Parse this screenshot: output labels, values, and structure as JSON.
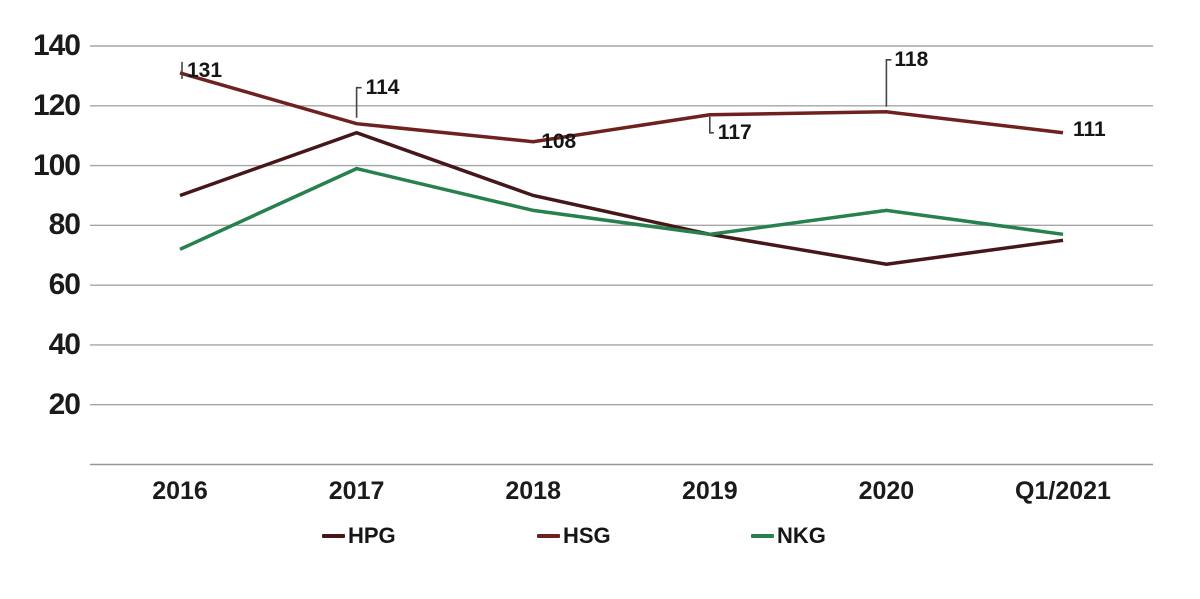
{
  "chart_data": {
    "type": "line",
    "categories": [
      "2016",
      "2017",
      "2018",
      "2019",
      "2020",
      "Q1/2021"
    ],
    "series": [
      {
        "name": "HPG",
        "color": "#451718",
        "values": [
          90,
          111,
          90,
          77,
          67,
          75
        ]
      },
      {
        "name": "HSG",
        "color": "#6f2120",
        "values": [
          131,
          114,
          108,
          117,
          118,
          111
        ]
      },
      {
        "name": "NKG",
        "color": "#26814f",
        "values": [
          72,
          99,
          85,
          77,
          85,
          77
        ]
      }
    ],
    "data_labels": {
      "series": "HSG",
      "values": [
        "131",
        "114",
        "108",
        "117",
        "118",
        "111"
      ]
    },
    "yticks": [
      "140",
      "120",
      "100",
      "80",
      "60",
      "40",
      "20"
    ],
    "ylim": [
      0,
      140
    ],
    "grid": true,
    "title": "",
    "xlabel": "",
    "ylabel": "",
    "legend": [
      "HPG",
      "HSG",
      "NKG"
    ],
    "legend_position": "bottom"
  },
  "colors": {
    "background": "#ffffff",
    "grid": "#a6a6a6",
    "axis": "#969696",
    "leader": "#444444",
    "text": "#1b1b1b"
  }
}
